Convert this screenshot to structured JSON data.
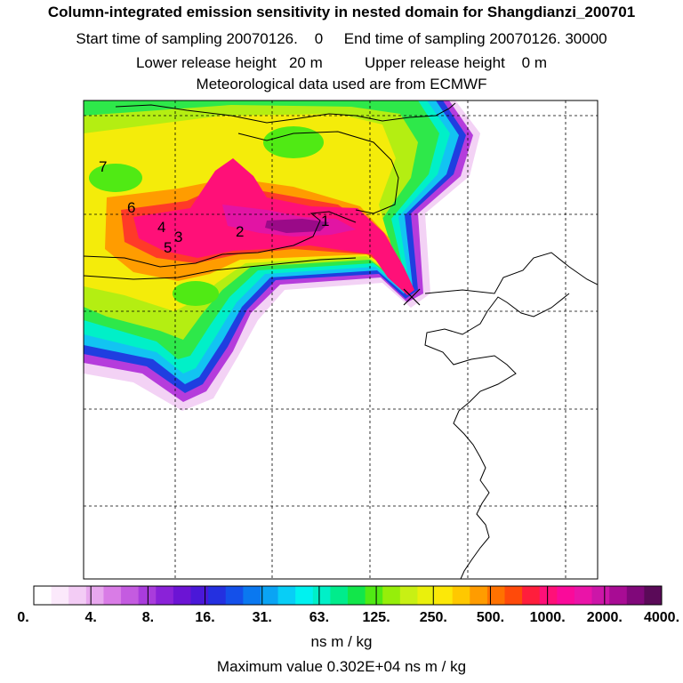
{
  "header": {
    "title": "Column-integrated emission sensitivity in nested domain for Shangdianzi_200701",
    "sampling": "Start time of sampling 20070126.    0     End time of sampling 20070126. 30000",
    "release": "Lower release height   20 m          Upper release height    0 m",
    "met": "Meteorological data used are from ECMWF"
  },
  "map": {
    "source_labels": [
      "1",
      "2",
      "3",
      "4",
      "5",
      "6",
      "7"
    ],
    "receptor_marker": "receptor-x"
  },
  "colorbar": {
    "tick_labels": [
      "0.",
      "4.",
      "8.",
      "16.",
      "31.",
      "63.",
      "125.",
      "250.",
      "500.",
      "1000.",
      "2000.",
      "4000."
    ],
    "colors": [
      "#ffffff",
      "#fbe9fb",
      "#f3ccf5",
      "#e8a8ee",
      "#d97ce6",
      "#c45be0",
      "#a93cdc",
      "#8a22d8",
      "#6c14d4",
      "#4a18d8",
      "#2430e0",
      "#1450ea",
      "#0a78f0",
      "#0aa4f4",
      "#08cef6",
      "#00f2f0",
      "#00f0c8",
      "#00ec8c",
      "#12e64a",
      "#50ea14",
      "#96ee0a",
      "#c8f014",
      "#eaf00c",
      "#fce808",
      "#ffc800",
      "#ff9c00",
      "#ff7200",
      "#ff4a0a",
      "#ff1e3c",
      "#ff1078",
      "#fa0a9a",
      "#ea14a8",
      "#cc16a8",
      "#a80c94",
      "#80087a",
      "#5a0a58"
    ],
    "units": "ns m / kg"
  },
  "footer": {
    "max_value": "Maximum value  0.302E+04 ns m / kg"
  }
}
